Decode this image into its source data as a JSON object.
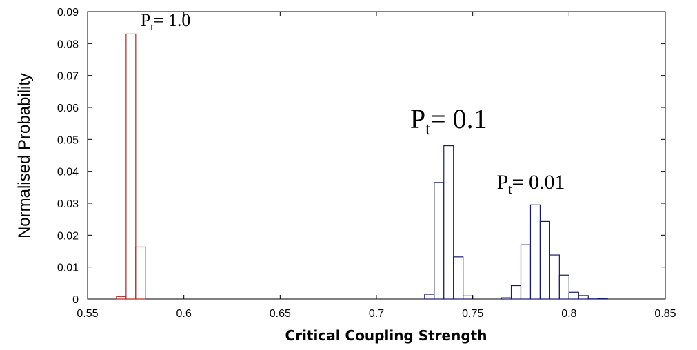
{
  "chart_data": {
    "type": "bar",
    "xlabel": "Critical Coupling Strength",
    "ylabel": "Normalised Probability",
    "xlim": [
      0.55,
      0.85
    ],
    "ylim": [
      0,
      0.09
    ],
    "xticks": [
      "0.55",
      "0.6",
      "0.65",
      "0.7",
      "0.75",
      "0.8",
      "0.85"
    ],
    "yticks": [
      "0",
      "0.01",
      "0.02",
      "0.03",
      "0.04",
      "0.05",
      "0.06",
      "0.07",
      "0.08",
      "0.09"
    ],
    "grid": false,
    "bin_width": 0.005,
    "series": [
      {
        "color": "#b22222",
        "bins": [
          {
            "x": 0.5675,
            "y": 0.0008
          },
          {
            "x": 0.5725,
            "y": 0.083
          },
          {
            "x": 0.5775,
            "y": 0.0163
          }
        ]
      },
      {
        "color": "#1a1a6e",
        "bins": [
          {
            "x": 0.7275,
            "y": 0.0015
          },
          {
            "x": 0.7325,
            "y": 0.0365
          },
          {
            "x": 0.7375,
            "y": 0.048
          },
          {
            "x": 0.7425,
            "y": 0.0132
          },
          {
            "x": 0.7475,
            "y": 0.001
          }
        ]
      },
      {
        "color": "#1a1a6e",
        "bins": [
          {
            "x": 0.7675,
            "y": 0.0004
          },
          {
            "x": 0.7725,
            "y": 0.0042
          },
          {
            "x": 0.7775,
            "y": 0.017
          },
          {
            "x": 0.7825,
            "y": 0.0295
          },
          {
            "x": 0.7875,
            "y": 0.0243
          },
          {
            "x": 0.7925,
            "y": 0.0138
          },
          {
            "x": 0.7975,
            "y": 0.0075
          },
          {
            "x": 0.8025,
            "y": 0.0021
          },
          {
            "x": 0.8075,
            "y": 0.0011
          },
          {
            "x": 0.8125,
            "y": 0.0003
          },
          {
            "x": 0.8175,
            "y": 0.0002
          }
        ]
      }
    ],
    "annotations": [
      {
        "main": "P",
        "sub": "t",
        "rest": "= 1.0",
        "x": 0.5775,
        "y": 0.0855
      },
      {
        "main": "P",
        "sub": "t",
        "rest": "= 0.1",
        "x": 0.7175,
        "y": 0.0535
      },
      {
        "main": "P",
        "sub": "t",
        "rest": "= 0.01",
        "x": 0.7625,
        "y": 0.0345
      }
    ]
  }
}
